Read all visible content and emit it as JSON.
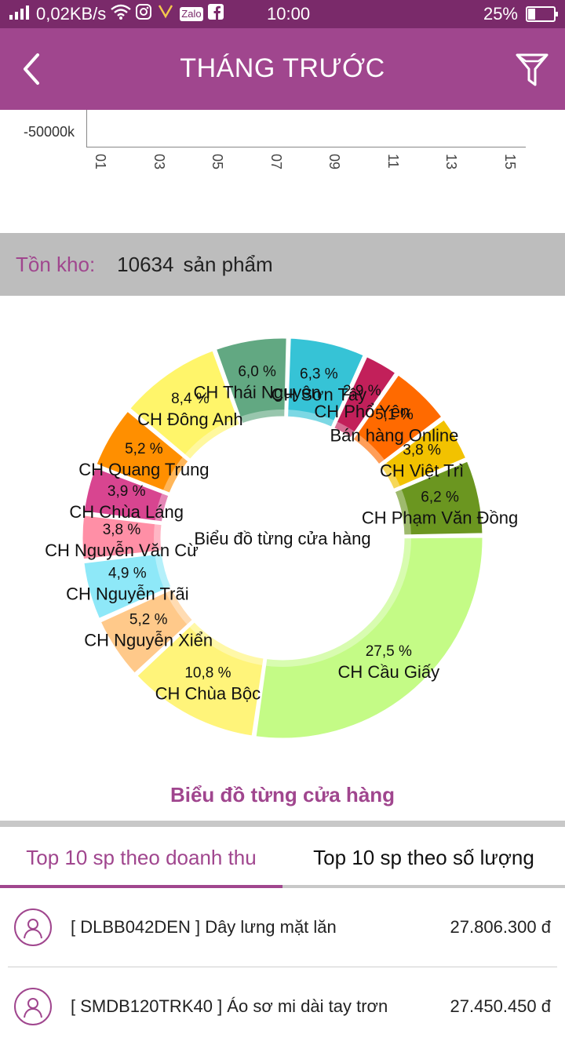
{
  "status_bar": {
    "network_speed": "0,02KB/s",
    "time": "10:00",
    "battery": "25%",
    "battery_level": 0.25,
    "zalo": "Zalo"
  },
  "app_bar": {
    "title": "THÁNG TRƯỚC"
  },
  "line_chart": {
    "y_label": "-50000k",
    "x_ticks": [
      "01",
      "03",
      "05",
      "07",
      "09",
      "11",
      "13",
      "15"
    ]
  },
  "stock": {
    "label": "Tồn kho:",
    "value": "10634",
    "unit": "sản phẩm"
  },
  "chart_data": {
    "type": "pie",
    "center_label": "Biểu đồ từng cửa hàng",
    "slices": [
      {
        "name": "CH Sơn Tây",
        "percent_label": "6,3 %",
        "value": 6.3,
        "color": "#36c3d6"
      },
      {
        "name": "CH Phổ Yên",
        "percent_label": "2,9 %",
        "value": 2.9,
        "color": "#c2205a"
      },
      {
        "name": "Bán hàng Online",
        "percent_label": "5,1 %",
        "value": 5.1,
        "color": "#ff6a00"
      },
      {
        "name": "CH Việt Trì",
        "percent_label": "3,8 %",
        "value": 3.8,
        "color": "#f2c200"
      },
      {
        "name": "CH Phạm Văn Đồng",
        "percent_label": "6,2 %",
        "value": 6.2,
        "color": "#6b9620"
      },
      {
        "name": "CH Cầu Giấy",
        "percent_label": "27,5 %",
        "value": 27.5,
        "color": "#c4fb86"
      },
      {
        "name": "CH Chùa Bộc",
        "percent_label": "10,8 %",
        "value": 10.8,
        "color": "#fff47a"
      },
      {
        "name": "CH Nguyễn Xiển",
        "percent_label": "5,2 %",
        "value": 5.2,
        "color": "#ffc98a"
      },
      {
        "name": "CH Nguyễn Trãi",
        "percent_label": "4,9 %",
        "value": 4.9,
        "color": "#8ee8f8"
      },
      {
        "name": "CH Nguyễn Văn Cừ",
        "percent_label": "3,8 %",
        "value": 3.8,
        "color": "#ff8fa6"
      },
      {
        "name": "CH Chùa Láng",
        "percent_label": "3,9 %",
        "value": 3.9,
        "color": "#d84590"
      },
      {
        "name": "CH Quang Trung",
        "percent_label": "5,2 %",
        "value": 5.2,
        "color": "#ff8f00"
      },
      {
        "name": "CH Đông Anh",
        "percent_label": "8,4 %",
        "value": 8.4,
        "color": "#fff56a"
      },
      {
        "name": "CH Thái Nguyên",
        "percent_label": "6,0 %",
        "value": 6.0,
        "color": "#62a882"
      }
    ]
  },
  "chart_caption": "Biểu đồ từng cửa hàng",
  "tabs": [
    {
      "label": "Top 10 sp theo doanh thu",
      "active": true
    },
    {
      "label": "Top 10 sp theo số lượng",
      "active": false
    }
  ],
  "products": [
    {
      "name": "[ DLBB042DEN ] Dây lưng mặt lăn",
      "value": "27.806.300 đ"
    },
    {
      "name": "[ SMDB120TRK40 ] Áo sơ mi dài tay trơn",
      "value": "27.450.450 đ"
    }
  ]
}
